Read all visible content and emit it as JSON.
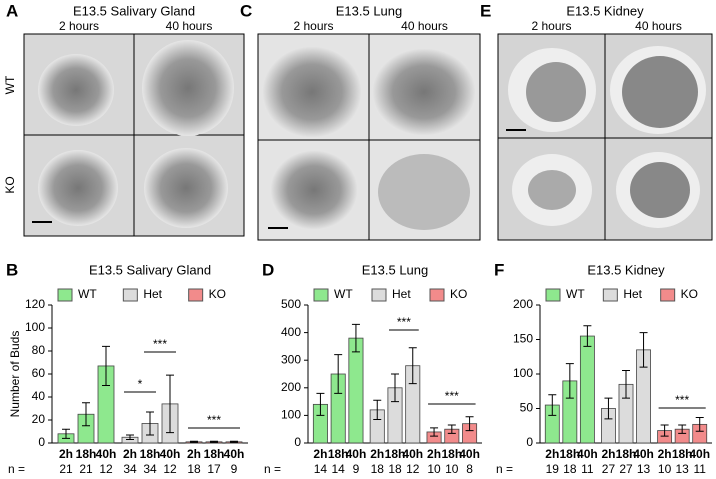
{
  "panels": [
    {
      "letter": "A",
      "title": "E13.5 Salivary Gland",
      "columns": [
        "2 hours",
        "40 hours"
      ],
      "rows": [
        "WT",
        "KO"
      ]
    },
    {
      "letter": "C",
      "title": "E13.5 Lung",
      "columns": [
        "2 hours",
        "40 hours"
      ]
    },
    {
      "letter": "E",
      "title": "E13.5 Kidney",
      "columns": [
        "2 hours",
        "40 hours"
      ]
    }
  ],
  "chart_data": [
    {
      "type": "bar",
      "letter": "B",
      "title": "E13.5 Salivary Gland",
      "y_label": "Number of Buds",
      "categories": [
        "2h",
        "18h",
        "40h",
        "2h",
        "18h",
        "40h",
        "2h",
        "18h",
        "40h"
      ],
      "series": [
        {
          "name": "WT",
          "color": "#8ee88e",
          "values": [
            8,
            25,
            67,
            null,
            null,
            null,
            null,
            null,
            null
          ],
          "errors": [
            4,
            10,
            17,
            null,
            null,
            null,
            null,
            null,
            null
          ]
        },
        {
          "name": "Het",
          "color": "#dcdcdc",
          "values": [
            null,
            null,
            null,
            5,
            17,
            34,
            null,
            null,
            null
          ],
          "errors": [
            null,
            null,
            null,
            2,
            10,
            25,
            null,
            null,
            null
          ]
        },
        {
          "name": "KO",
          "color": "#f28b8b",
          "values": [
            null,
            null,
            null,
            null,
            null,
            null,
            1,
            1,
            1
          ],
          "errors": [
            null,
            null,
            null,
            null,
            null,
            null,
            0.5,
            0.5,
            0.5
          ]
        }
      ],
      "n_label": "n =",
      "n": [
        21,
        21,
        12,
        34,
        34,
        12,
        18,
        17,
        9
      ],
      "annotations": [
        "*",
        "***",
        "***"
      ],
      "ylim": [
        0,
        120
      ],
      "yticks": [
        0,
        20,
        40,
        60,
        80,
        100,
        120
      ]
    },
    {
      "type": "bar",
      "letter": "D",
      "title": "E13.5 Lung",
      "categories": [
        "2h",
        "18h",
        "40h",
        "2h",
        "18h",
        "40h",
        "2h",
        "18h",
        "40h"
      ],
      "series": [
        {
          "name": "WT",
          "color": "#8ee88e",
          "values": [
            140,
            250,
            380,
            null,
            null,
            null,
            null,
            null,
            null
          ],
          "errors": [
            40,
            70,
            50,
            null,
            null,
            null,
            null,
            null,
            null
          ]
        },
        {
          "name": "Het",
          "color": "#dcdcdc",
          "values": [
            null,
            null,
            null,
            120,
            200,
            280,
            null,
            null,
            null
          ],
          "errors": [
            null,
            null,
            null,
            35,
            50,
            65,
            null,
            null,
            null
          ]
        },
        {
          "name": "KO",
          "color": "#f28b8b",
          "values": [
            null,
            null,
            null,
            null,
            null,
            null,
            40,
            50,
            70
          ],
          "errors": [
            null,
            null,
            null,
            null,
            null,
            null,
            15,
            15,
            25
          ]
        }
      ],
      "n_label": "n =",
      "n": [
        14,
        14,
        9,
        18,
        18,
        12,
        10,
        10,
        8
      ],
      "annotations": [
        "***",
        "***"
      ],
      "ylim": [
        0,
        500
      ],
      "yticks": [
        0,
        100,
        200,
        300,
        400,
        500
      ]
    },
    {
      "type": "bar",
      "letter": "F",
      "title": "E13.5 Kidney",
      "categories": [
        "2h",
        "18h",
        "40h",
        "2h",
        "18h",
        "40h",
        "2h",
        "18h",
        "40h"
      ],
      "series": [
        {
          "name": "WT",
          "color": "#8ee88e",
          "values": [
            55,
            90,
            155,
            null,
            null,
            null,
            null,
            null,
            null
          ],
          "errors": [
            15,
            25,
            15,
            null,
            null,
            null,
            null,
            null,
            null
          ]
        },
        {
          "name": "Het",
          "color": "#dcdcdc",
          "values": [
            null,
            null,
            null,
            50,
            85,
            135,
            null,
            null,
            null
          ],
          "errors": [
            null,
            null,
            null,
            15,
            20,
            25,
            null,
            null,
            null
          ]
        },
        {
          "name": "KO",
          "color": "#f28b8b",
          "values": [
            null,
            null,
            null,
            null,
            null,
            null,
            18,
            20,
            27
          ],
          "errors": [
            null,
            null,
            null,
            null,
            null,
            null,
            8,
            6,
            10
          ]
        }
      ],
      "n_label": "n =",
      "n": [
        19,
        18,
        11,
        27,
        27,
        13,
        10,
        13,
        11
      ],
      "annotations": [
        "***"
      ],
      "ylim": [
        0,
        200
      ],
      "yticks": [
        0,
        50,
        100,
        150,
        200
      ]
    }
  ]
}
